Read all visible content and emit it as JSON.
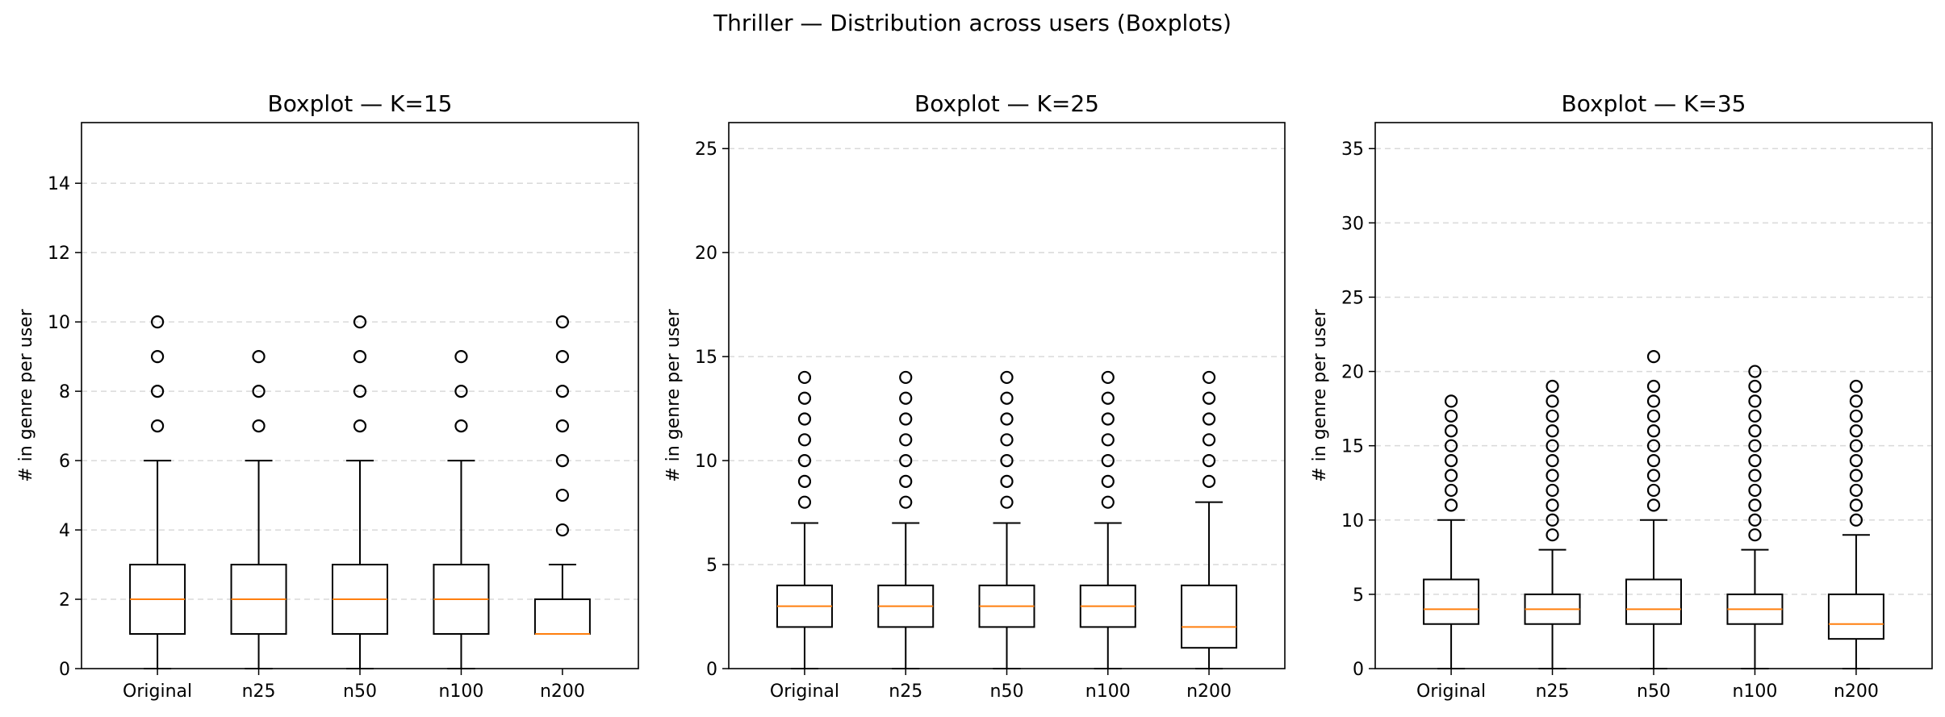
{
  "figure_title": "Thriller — Distribution across users (Boxplots)",
  "colors": {
    "box": "#000000",
    "median": "#ff7f0e",
    "grid": "#d9d9d9",
    "flier": "#000000"
  },
  "chart_data": [
    {
      "type": "boxplot",
      "title": "Boxplot — K=15",
      "ylabel": "# in genre per user",
      "ylim": [
        0,
        15.75
      ],
      "yticks": [
        0,
        2,
        4,
        6,
        8,
        10,
        12,
        14
      ],
      "grid": "y-dashed",
      "categories": [
        "Original",
        "n25",
        "n50",
        "n100",
        "n200"
      ],
      "boxes": [
        {
          "whislo": 0,
          "q1": 1,
          "med": 2,
          "q3": 3,
          "whishi": 6,
          "fliers": [
            7,
            8,
            9,
            10
          ]
        },
        {
          "whislo": 0,
          "q1": 1,
          "med": 2,
          "q3": 3,
          "whishi": 6,
          "fliers": [
            7,
            8,
            9
          ]
        },
        {
          "whislo": 0,
          "q1": 1,
          "med": 2,
          "q3": 3,
          "whishi": 6,
          "fliers": [
            7,
            8,
            9,
            10
          ]
        },
        {
          "whislo": 0,
          "q1": 1,
          "med": 2,
          "q3": 3,
          "whishi": 6,
          "fliers": [
            7,
            8,
            9
          ]
        },
        {
          "whislo": 1,
          "q1": 1,
          "med": 1,
          "q3": 2,
          "whishi": 3,
          "fliers": [
            4,
            5,
            6,
            7,
            8,
            9,
            10
          ]
        }
      ]
    },
    {
      "type": "boxplot",
      "title": "Boxplot — K=25",
      "ylabel": "# in genre per user",
      "ylim": [
        0,
        26.25
      ],
      "yticks": [
        0,
        5,
        10,
        15,
        20,
        25
      ],
      "grid": "y-dashed",
      "categories": [
        "Original",
        "n25",
        "n50",
        "n100",
        "n200"
      ],
      "boxes": [
        {
          "whislo": 0,
          "q1": 2,
          "med": 3,
          "q3": 4,
          "whishi": 7,
          "fliers": [
            8,
            9,
            10,
            11,
            12,
            13,
            14
          ]
        },
        {
          "whislo": 0,
          "q1": 2,
          "med": 3,
          "q3": 4,
          "whishi": 7,
          "fliers": [
            8,
            9,
            10,
            11,
            12,
            13,
            14
          ]
        },
        {
          "whislo": 0,
          "q1": 2,
          "med": 3,
          "q3": 4,
          "whishi": 7,
          "fliers": [
            8,
            9,
            10,
            11,
            12,
            13,
            14
          ]
        },
        {
          "whislo": 0,
          "q1": 2,
          "med": 3,
          "q3": 4,
          "whishi": 7,
          "fliers": [
            8,
            9,
            10,
            11,
            12,
            13,
            14
          ]
        },
        {
          "whislo": 0,
          "q1": 1,
          "med": 2,
          "q3": 4,
          "whishi": 8,
          "fliers": [
            9,
            10,
            11,
            12,
            13,
            14
          ]
        }
      ]
    },
    {
      "type": "boxplot",
      "title": "Boxplot — K=35",
      "ylabel": "# in genre per user",
      "ylim": [
        0,
        36.75
      ],
      "yticks": [
        0,
        5,
        10,
        15,
        20,
        25,
        30,
        35
      ],
      "grid": "y-dashed",
      "categories": [
        "Original",
        "n25",
        "n50",
        "n100",
        "n200"
      ],
      "boxes": [
        {
          "whislo": 0,
          "q1": 3,
          "med": 4,
          "q3": 6,
          "whishi": 10,
          "fliers": [
            11,
            12,
            13,
            14,
            15,
            16,
            17,
            18
          ]
        },
        {
          "whislo": 0,
          "q1": 3,
          "med": 4,
          "q3": 5,
          "whishi": 8,
          "fliers": [
            9,
            10,
            11,
            12,
            13,
            14,
            15,
            16,
            17,
            18,
            19
          ]
        },
        {
          "whislo": 0,
          "q1": 3,
          "med": 4,
          "q3": 6,
          "whishi": 10,
          "fliers": [
            11,
            12,
            13,
            14,
            15,
            16,
            17,
            18,
            19,
            21
          ]
        },
        {
          "whislo": 0,
          "q1": 3,
          "med": 4,
          "q3": 5,
          "whishi": 8,
          "fliers": [
            9,
            10,
            11,
            12,
            13,
            14,
            15,
            16,
            17,
            18,
            19,
            20
          ]
        },
        {
          "whislo": 0,
          "q1": 2,
          "med": 3,
          "q3": 5,
          "whishi": 9,
          "fliers": [
            10,
            11,
            12,
            13,
            14,
            15,
            16,
            17,
            18,
            19
          ]
        }
      ]
    }
  ]
}
